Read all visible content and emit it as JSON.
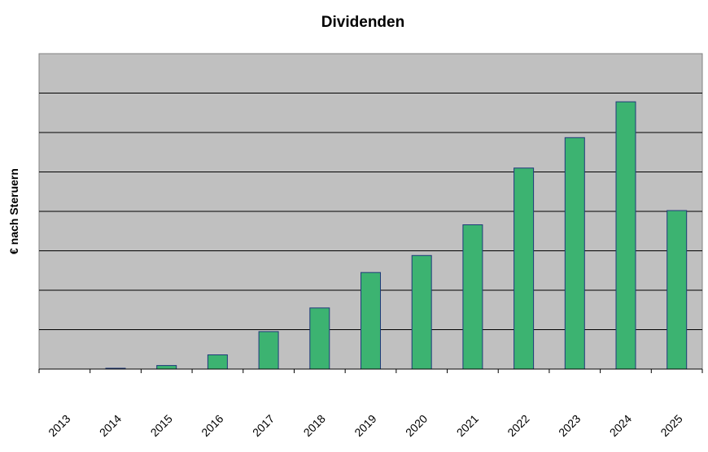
{
  "chart_data": {
    "type": "bar",
    "title": "Dividenden",
    "xlabel": "",
    "ylabel": "€ nach Steruern",
    "categories": [
      "2013",
      "2014",
      "2015",
      "2016",
      "2017",
      "2018",
      "2019",
      "2020",
      "2021",
      "2022",
      "2023",
      "2024",
      "2025"
    ],
    "values": [
      0,
      0.02,
      0.09,
      0.36,
      0.95,
      1.55,
      2.45,
      2.88,
      3.66,
      5.1,
      5.87,
      6.78,
      4.02
    ],
    "ylim": [
      0,
      8
    ],
    "ytick_labels_shown": false,
    "grid": true,
    "legend": "none",
    "colors": {
      "bar_fill": "#3cb371",
      "bar_stroke": "#1f3a7a",
      "plot_bg": "#c0c0c0",
      "grid": "#000000"
    }
  }
}
